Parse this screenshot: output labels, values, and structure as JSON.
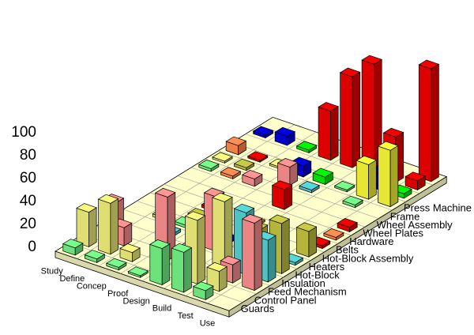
{
  "chart_data": {
    "type": "bar3d",
    "title": "",
    "xlabel": "",
    "ylabel": "",
    "ylim": [
      0,
      100
    ],
    "zticks": [
      "0",
      "20",
      "40",
      "60",
      "80",
      "100"
    ],
    "phases": [
      "Study",
      "Define",
      "Concep",
      "Proof",
      "Design",
      "Build",
      "Test",
      "Use"
    ],
    "components": [
      "Guards",
      "Control Panel",
      "Feed Mechanism",
      "Insulation",
      "Hot-Block",
      "Heaters",
      "Hot-Block Assembly",
      "Belts",
      "Hardware",
      "Wheel Plates",
      "Wheel Assembly",
      "Frame",
      "Press Machine"
    ],
    "colors": {
      "floor": "#ffffcc",
      "grid": "#000000",
      "palette": [
        "#6be27b",
        "#dede72",
        "#eb8585",
        "#4fc2c2",
        "#e6e634",
        "#b5b53c",
        "#f08048",
        "#0000cc",
        "#dd0000",
        "#00dd00"
      ]
    },
    "bars": [
      {
        "phase": "Study",
        "component": "Guards",
        "value": 8,
        "color": "#6be27b"
      },
      {
        "phase": "Define",
        "component": "Guards",
        "value": 4,
        "color": "#6be27b"
      },
      {
        "phase": "Concep",
        "component": "Guards",
        "value": 3,
        "color": "#6be27b"
      },
      {
        "phase": "Proof",
        "component": "Guards",
        "value": 2,
        "color": "#6be27b"
      },
      {
        "phase": "Design",
        "component": "Guards",
        "value": 40,
        "color": "#6be27b"
      },
      {
        "phase": "Build",
        "component": "Guards",
        "value": 44,
        "color": "#6be27b"
      },
      {
        "phase": "Test",
        "component": "Guards",
        "value": 10,
        "color": "#6be27b"
      },
      {
        "phase": "Study",
        "component": "Control Panel",
        "value": 38,
        "color": "#dede72"
      },
      {
        "phase": "Define",
        "component": "Control Panel",
        "value": 56,
        "color": "#dede72"
      },
      {
        "phase": "Concep",
        "component": "Control Panel",
        "value": 10,
        "color": "#dede72"
      },
      {
        "phase": "Build",
        "component": "Control Panel",
        "value": 70,
        "color": "#dede72"
      },
      {
        "phase": "Test",
        "component": "Control Panel",
        "value": 22,
        "color": "#dede72"
      },
      {
        "phase": "Define",
        "component": "Feed Mechanism",
        "value": 20,
        "color": "#eb8585"
      },
      {
        "phase": "Proof",
        "component": "Feed Mechanism",
        "value": 70,
        "color": "#eb8585"
      },
      {
        "phase": "Design",
        "component": "Feed Mechanism",
        "value": 18,
        "color": "#eb8585"
      },
      {
        "phase": "Test",
        "component": "Feed Mechanism",
        "value": 20,
        "color": "#eb8585"
      },
      {
        "phase": "Use",
        "component": "Feed Mechanism",
        "value": 74,
        "color": "#eb8585"
      },
      {
        "phase": "Study",
        "component": "Insulation",
        "value": 30,
        "color": "#eb8585"
      },
      {
        "phase": "Build",
        "component": "Insulation",
        "value": 72,
        "color": "#dede72"
      },
      {
        "phase": "Test",
        "component": "Insulation",
        "value": 68,
        "color": "#4fc2c2"
      },
      {
        "phase": "Use",
        "component": "Insulation",
        "value": 46,
        "color": "#4fc2c2"
      },
      {
        "phase": "Concep",
        "component": "Hot-Block",
        "value": 3,
        "color": "#4fc2c2"
      },
      {
        "phase": "Design",
        "component": "Hot-Block",
        "value": 60,
        "color": "#eb8585"
      },
      {
        "phase": "Test",
        "component": "Hot-Block",
        "value": 40,
        "color": "#b5b53c"
      },
      {
        "phase": "Use",
        "component": "Hot-Block",
        "value": 55,
        "color": "#b5b53c"
      },
      {
        "phase": "Define",
        "component": "Heaters",
        "value": 3,
        "color": "#dede72"
      },
      {
        "phase": "Concep",
        "component": "Heaters",
        "value": 3,
        "color": "#6be27b"
      },
      {
        "phase": "Design",
        "component": "Heaters",
        "value": 2,
        "color": "#0000cc"
      },
      {
        "phase": "Use",
        "component": "Heaters",
        "value": 3,
        "color": "#4fc2c2"
      },
      {
        "phase": "Concep",
        "component": "Hot-Block Assembly",
        "value": 3,
        "color": "#b5b53c"
      },
      {
        "phase": "Proof",
        "component": "Hot-Block Assembly",
        "value": 3,
        "color": "#dd0000"
      },
      {
        "phase": "Use",
        "component": "Hot-Block Assembly",
        "value": 28,
        "color": "#b5b53c"
      },
      {
        "phase": "Concep",
        "component": "Belts",
        "value": 3,
        "color": "#dd0000"
      },
      {
        "phase": "Design",
        "component": "Belts",
        "value": 2,
        "color": "#b5b53c"
      },
      {
        "phase": "Use",
        "component": "Belts",
        "value": 3,
        "color": "#dd0000"
      },
      {
        "phase": "Use",
        "component": "Hardware",
        "value": 3,
        "color": "#f08048"
      },
      {
        "phase": "Design",
        "component": "Wheel Plates",
        "value": 22,
        "color": "#dd0000"
      },
      {
        "phase": "Use",
        "component": "Wheel Plates",
        "value": 5,
        "color": "#dd0000"
      },
      {
        "phase": "Study",
        "component": "Wheel Assembly",
        "value": 3,
        "color": "#6be27b"
      },
      {
        "phase": "Define",
        "component": "Wheel Assembly",
        "value": 3,
        "color": "#f08048"
      },
      {
        "phase": "Concep",
        "component": "Wheel Assembly",
        "value": 8,
        "color": "#eb8585"
      },
      {
        "phase": "Study",
        "component": "Frame",
        "value": 2,
        "color": "#dede72"
      },
      {
        "phase": "Define",
        "component": "Frame",
        "value": 3,
        "color": "#b5b53c"
      },
      {
        "phase": "Proof",
        "component": "Frame",
        "value": 20,
        "color": "#eb8585"
      },
      {
        "phase": "Design",
        "component": "Frame",
        "value": 3,
        "color": "#4fc2c2"
      },
      {
        "phase": "Test",
        "component": "Frame",
        "value": 3,
        "color": "#6be27b"
      },
      {
        "phase": "Study",
        "component": "Press Machine",
        "value": 2,
        "color": "#f08048"
      },
      {
        "phase": "Define",
        "component": "Press Machine",
        "value": 2,
        "color": "#dd0000"
      },
      {
        "phase": "Proof",
        "component": "Press Machine",
        "value": 3,
        "color": "#0000cc"
      },
      {
        "phase": "Design",
        "component": "Press Machine",
        "value": 3,
        "color": "#f08048"
      },
      {
        "phase": "Use",
        "component": "Press Machine",
        "value": 40,
        "color": "#4fc2c2"
      },
      {
        "phase": "Study",
        "component": "Press Machine",
        "value": 10,
        "color": "#f08048"
      },
      {
        "phase": "Concep",
        "component": "Press Machine",
        "value": 2,
        "color": "#dede72"
      },
      {
        "phase": "Proof",
        "component": "Press Machine",
        "value": 12,
        "color": "#0000cc"
      },
      {
        "phase": "Design",
        "component": "Press Machine",
        "value": 8,
        "color": "#00dd00"
      },
      {
        "phase": "Build",
        "component": "Press Machine",
        "value": 2,
        "color": "#6be27b"
      },
      {
        "phase": "Test",
        "component": "Press Machine",
        "value": 38,
        "color": "#e6e634"
      },
      {
        "phase": "Use",
        "component": "Press Machine",
        "value": 62,
        "color": "#e6e634"
      }
    ],
    "back_bars": [
      {
        "component_offset": 0,
        "phase": "Test",
        "value": 18,
        "color": "#0000cc"
      },
      {
        "component_offset": 0,
        "phase": "Use",
        "value": 5,
        "color": "#00dd00"
      },
      {
        "component_offset": 1,
        "phase": "Study",
        "value": 3,
        "color": "#0000cc"
      },
      {
        "component_offset": 1,
        "phase": "Define",
        "value": 10,
        "color": "#0000cc"
      },
      {
        "component_offset": 1,
        "phase": "Concep",
        "value": 3,
        "color": "#00dd00"
      },
      {
        "component_offset": 1,
        "phase": "Proof",
        "value": 54,
        "color": "#dd0000"
      },
      {
        "component_offset": 1,
        "phase": "Design",
        "value": 100,
        "color": "#dd0000"
      },
      {
        "component_offset": 1,
        "phase": "Build",
        "value": 122,
        "color": "#dd0000"
      },
      {
        "component_offset": 1,
        "phase": "Test",
        "value": 50,
        "color": "#dd0000"
      },
      {
        "component_offset": 1,
        "phase": "Use",
        "value": 10,
        "color": "#dd0000"
      },
      {
        "component_offset": 2,
        "phase": "Use",
        "value": 124,
        "color": "#dd0000"
      }
    ]
  }
}
